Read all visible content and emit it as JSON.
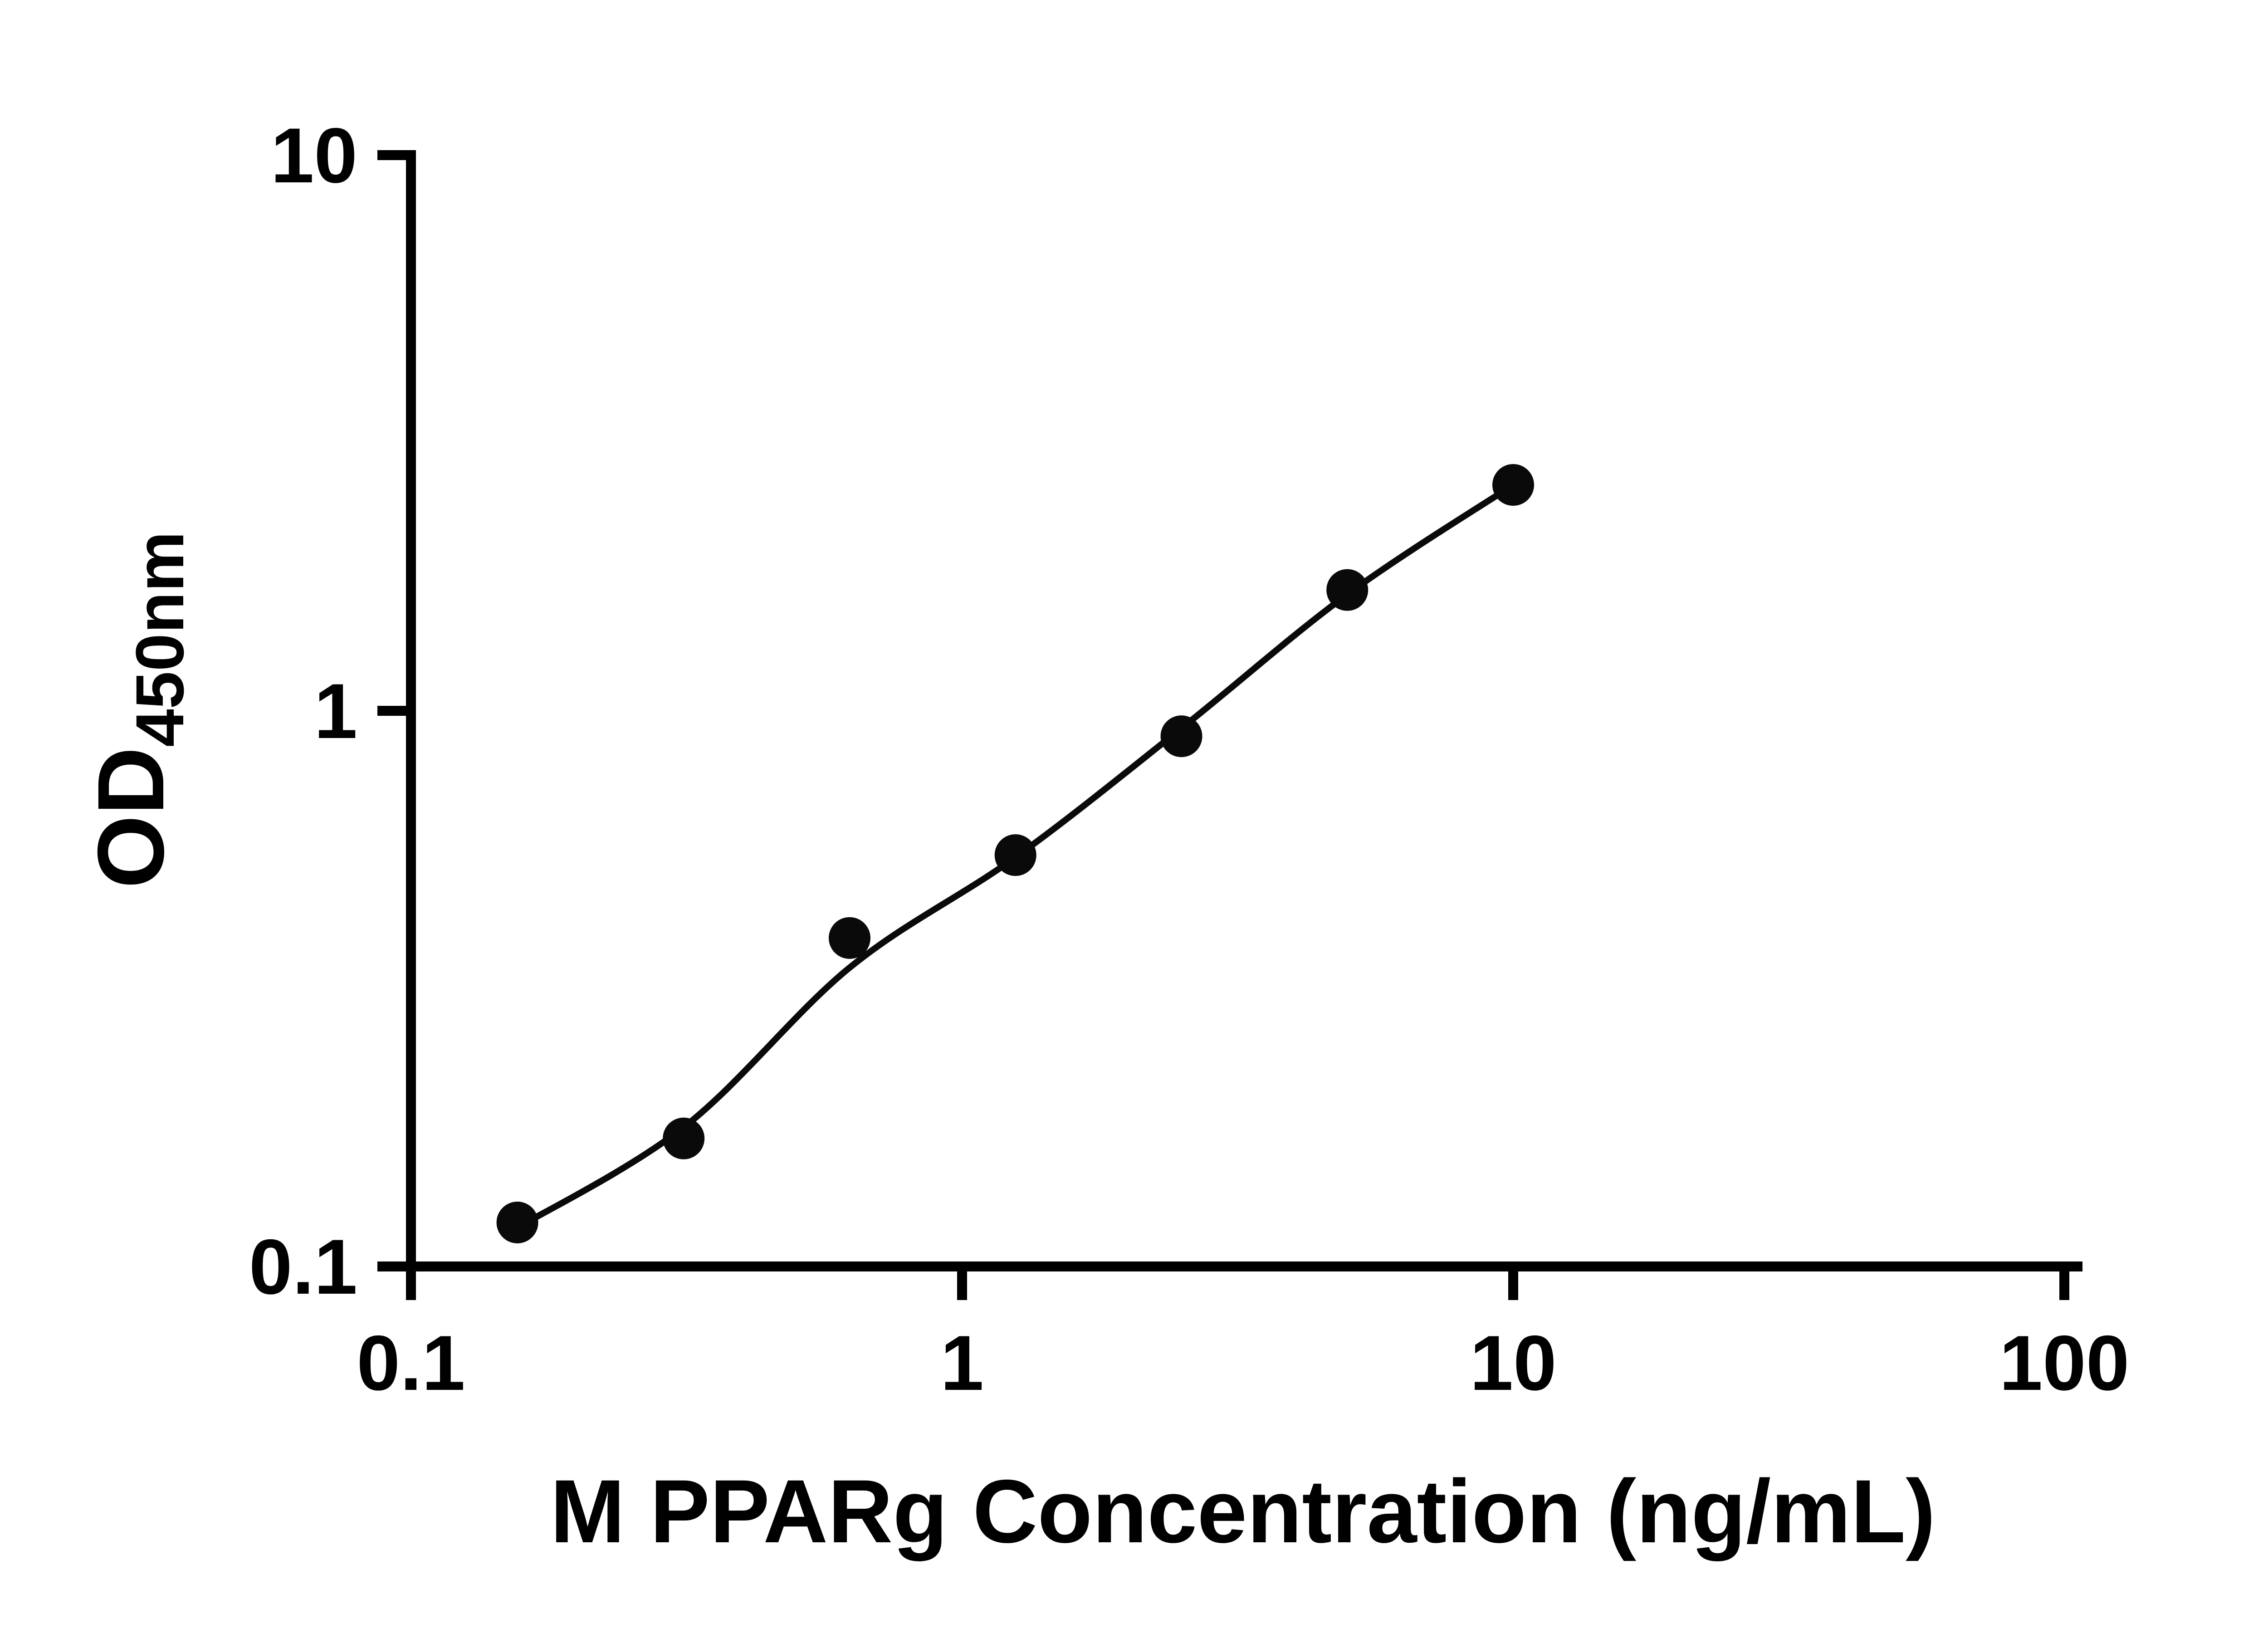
{
  "chart_data": {
    "type": "scatter",
    "title": "",
    "xlabel": "M PPARg Concentration (ng/mL)",
    "ylabel_main": "OD",
    "ylabel_sub": "450nm",
    "x_scale": "log",
    "y_scale": "log",
    "xlim": [
      0.1,
      100
    ],
    "ylim": [
      0.1,
      10
    ],
    "grid": false,
    "legend": false,
    "x_ticks": [
      {
        "value": 0.1,
        "label": "0.1"
      },
      {
        "value": 1,
        "label": "1"
      },
      {
        "value": 10,
        "label": "10"
      },
      {
        "value": 100,
        "label": "100"
      }
    ],
    "y_ticks": [
      {
        "value": 0.1,
        "label": "0.1"
      },
      {
        "value": 1,
        "label": "1"
      },
      {
        "value": 10,
        "label": "10"
      }
    ],
    "points": [
      {
        "x": 0.156,
        "y": 0.12
      },
      {
        "x": 0.3125,
        "y": 0.17
      },
      {
        "x": 0.625,
        "y": 0.39
      },
      {
        "x": 1.25,
        "y": 0.55
      },
      {
        "x": 2.5,
        "y": 0.9
      },
      {
        "x": 5.0,
        "y": 1.65
      },
      {
        "x": 10.0,
        "y": 2.55
      }
    ],
    "fit_curve": [
      {
        "x": 0.15,
        "y": 0.115
      },
      {
        "x": 0.3125,
        "y": 0.178
      },
      {
        "x": 0.625,
        "y": 0.345
      },
      {
        "x": 1.25,
        "y": 0.545
      },
      {
        "x": 2.5,
        "y": 0.93
      },
      {
        "x": 5.0,
        "y": 1.62
      },
      {
        "x": 10.0,
        "y": 2.55
      }
    ],
    "marker_color": "#0a0a0a",
    "line_color": "#0a0a0a",
    "axis_color": "#000000"
  }
}
